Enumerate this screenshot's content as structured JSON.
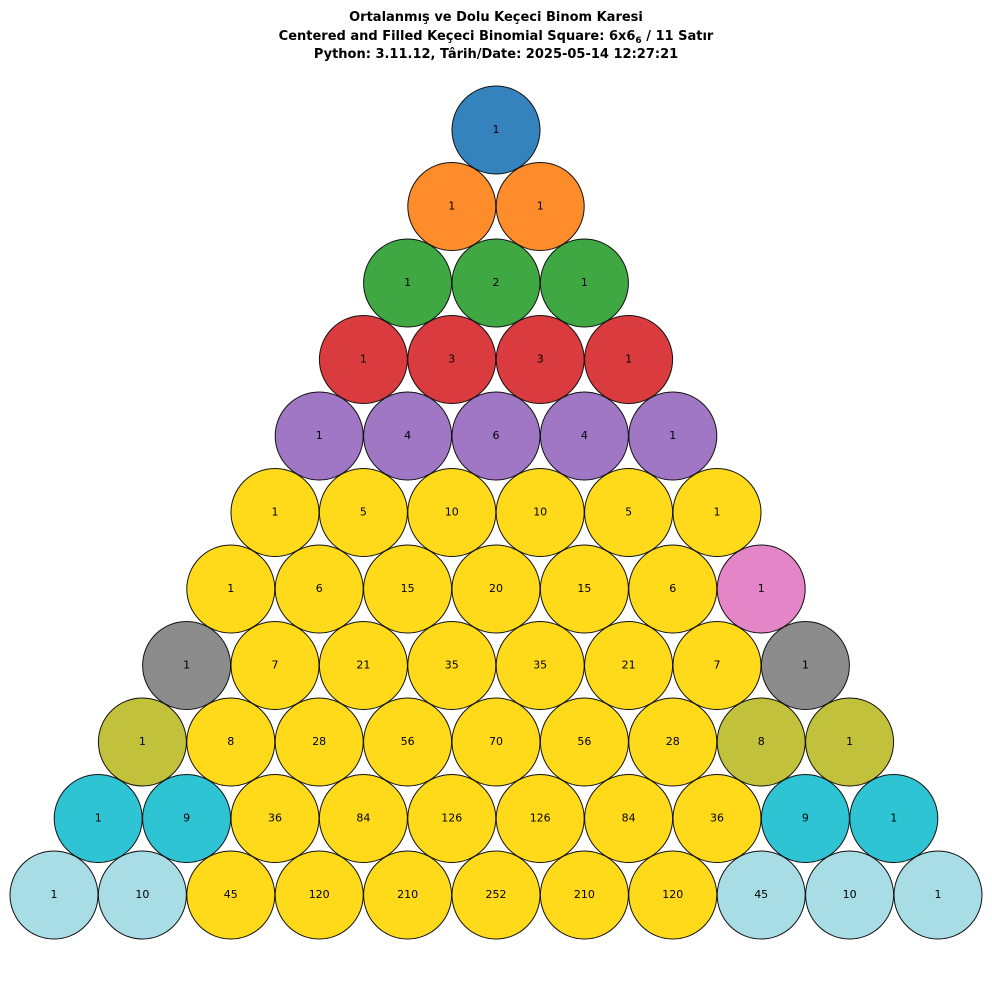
{
  "title": {
    "line1": "Ortalanmış ve Dolu Keçeci Binom Karesi",
    "line2_main": "Centered and Filled Keçeci Binomial Square: 6x6",
    "line2_sub": "6",
    "line2_rest": " / 11 Satır",
    "line3": "Python: 3.11.12, Târih/Date: 2025-05-14 12:27:21"
  },
  "rows": [
    {
      "values": [
        1
      ],
      "colors": [
        "#3583bd"
      ]
    },
    {
      "values": [
        1,
        1
      ],
      "colors": [
        "#ff8c2a",
        "#ff8c2a"
      ]
    },
    {
      "values": [
        1,
        2,
        1
      ],
      "colors": [
        "#3fa842",
        "#3fa842",
        "#3fa842"
      ]
    },
    {
      "values": [
        1,
        3,
        3,
        1
      ],
      "colors": [
        "#d93b3e",
        "#d93b3e",
        "#d93b3e",
        "#d93b3e"
      ]
    },
    {
      "values": [
        1,
        4,
        6,
        4,
        1
      ],
      "colors": [
        "#a077c5",
        "#a077c5",
        "#a077c5",
        "#a077c5",
        "#a077c5"
      ]
    },
    {
      "values": [
        1,
        5,
        10,
        10,
        5,
        1
      ],
      "colors": [
        "#ffda1a",
        "#ffda1a",
        "#ffda1a",
        "#ffda1a",
        "#ffda1a",
        "#ffda1a"
      ]
    },
    {
      "values": [
        1,
        6,
        15,
        20,
        15,
        6,
        1
      ],
      "colors": [
        "#ffda1a",
        "#ffda1a",
        "#ffda1a",
        "#ffda1a",
        "#ffda1a",
        "#ffda1a",
        "#e485c8"
      ]
    },
    {
      "values": [
        1,
        7,
        21,
        35,
        35,
        21,
        7,
        1
      ],
      "colors": [
        "#8c8c8c",
        "#ffda1a",
        "#ffda1a",
        "#ffda1a",
        "#ffda1a",
        "#ffda1a",
        "#ffda1a",
        "#8c8c8c"
      ]
    },
    {
      "values": [
        1,
        8,
        28,
        56,
        70,
        56,
        28,
        8,
        1
      ],
      "colors": [
        "#c2c13b",
        "#ffda1a",
        "#ffda1a",
        "#ffda1a",
        "#ffda1a",
        "#ffda1a",
        "#ffda1a",
        "#c2c13b",
        "#c2c13b"
      ]
    },
    {
      "values": [
        1,
        9,
        36,
        84,
        126,
        126,
        84,
        36,
        9,
        1
      ],
      "colors": [
        "#2ec4d3",
        "#2ec4d3",
        "#ffda1a",
        "#ffda1a",
        "#ffda1a",
        "#ffda1a",
        "#ffda1a",
        "#ffda1a",
        "#2ec4d3",
        "#2ec4d3"
      ]
    },
    {
      "values": [
        1,
        10,
        45,
        120,
        210,
        252,
        210,
        120,
        45,
        10,
        1
      ],
      "colors": [
        "#a8dde6",
        "#a8dde6",
        "#ffda1a",
        "#ffda1a",
        "#ffda1a",
        "#ffda1a",
        "#ffda1a",
        "#ffda1a",
        "#a8dde6",
        "#a8dde6",
        "#a8dde6"
      ]
    }
  ]
}
